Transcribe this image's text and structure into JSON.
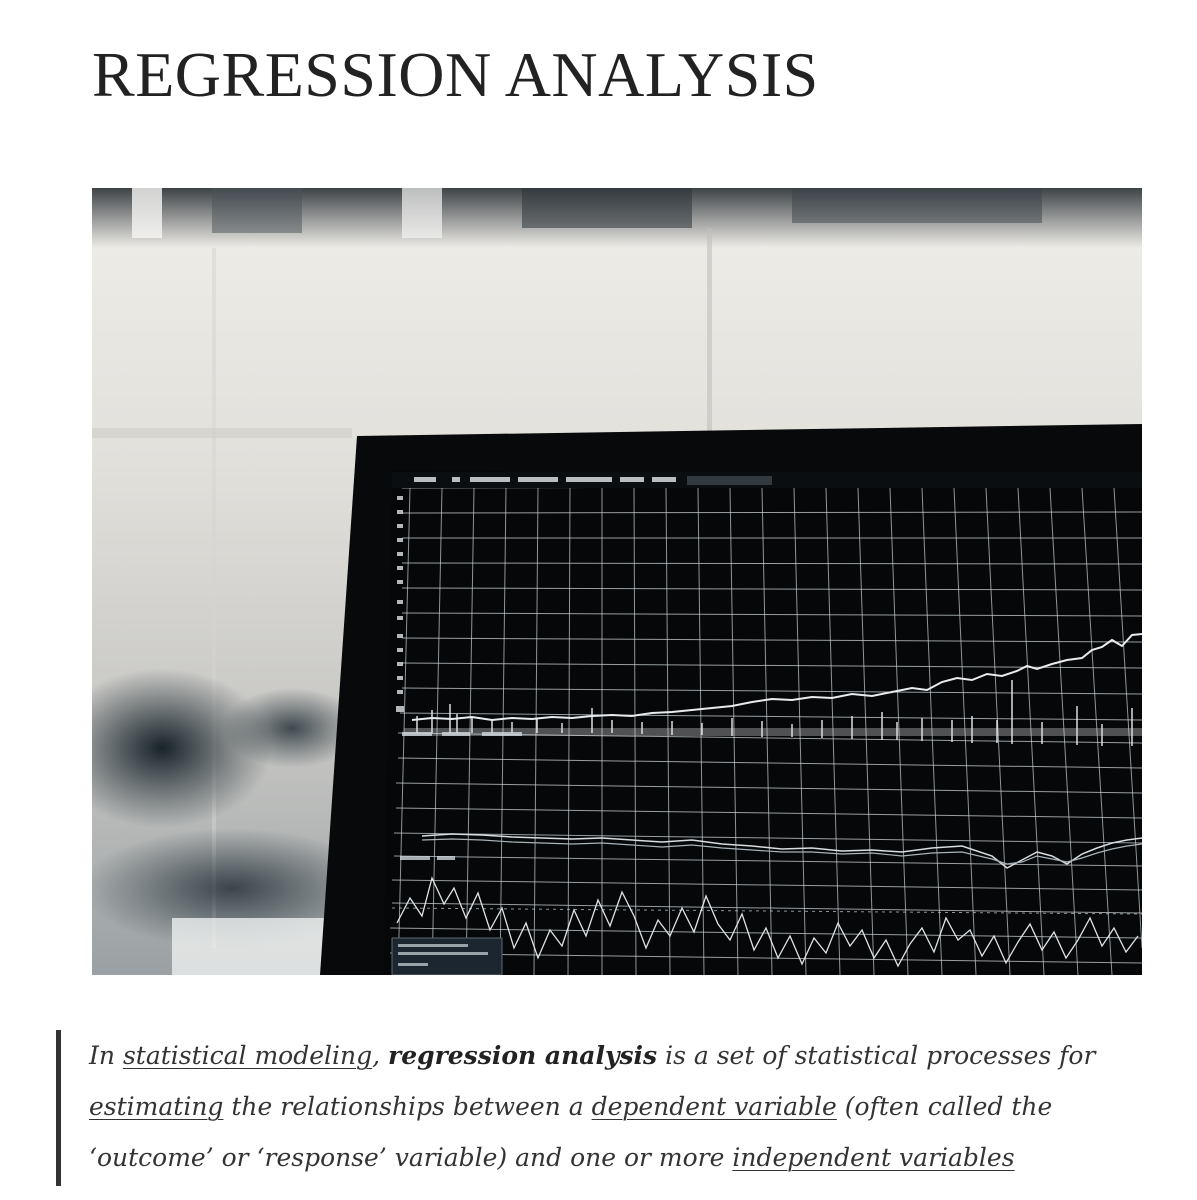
{
  "article": {
    "title": "REGRESSION ANALYSIS",
    "hero_image_alt": "monochrome laptop screen showing a financial chart",
    "quote": {
      "t1": "In ",
      "link_statistical_modeling": "statistical modeling",
      "t2": ", ",
      "bold_term": "regression analysis",
      "t3": " is a set of statistical processes for ",
      "link_estimating": "estimating",
      "t4": " the relationships between a ",
      "link_dependent_variable": "dependent variable",
      "t5": " (often called the ‘outcome’ or ‘response’ variable) and one or more ",
      "link_independent_variables": "independent variables"
    }
  },
  "colors": {
    "text": "#222222",
    "quote_border": "#333333",
    "screen": "#050709",
    "grid": "#c8d0d4"
  }
}
